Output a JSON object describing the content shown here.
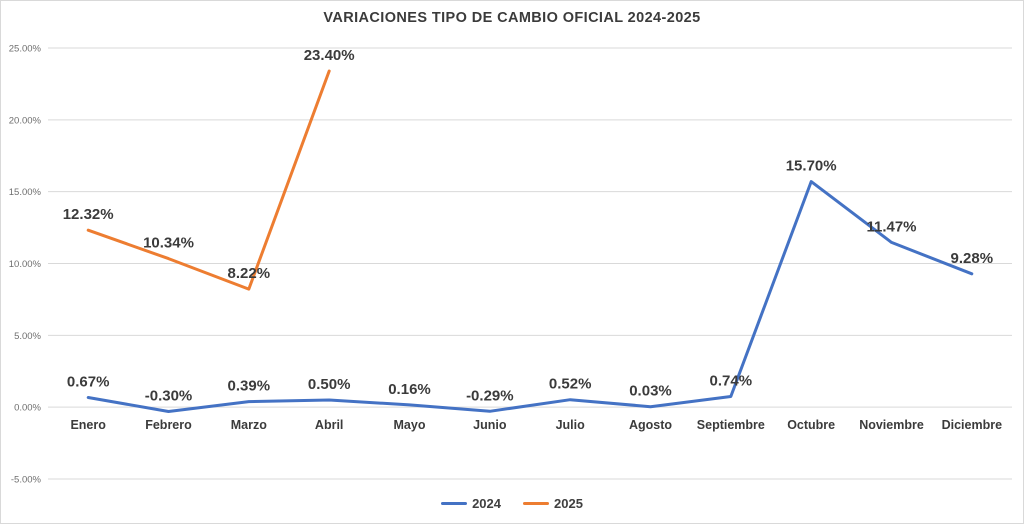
{
  "chart_data": {
    "type": "line",
    "title": "VARIACIONES TIPO DE CAMBIO OFICIAL 2024-2025",
    "categories": [
      "Enero",
      "Febrero",
      "Marzo",
      "Abril",
      "Mayo",
      "Junio",
      "Julio",
      "Agosto",
      "Septiembre",
      "Octubre",
      "Noviembre",
      "Diciembre"
    ],
    "series": [
      {
        "name": "2024",
        "color": "#4472C4",
        "values": [
          0.67,
          -0.3,
          0.39,
          0.5,
          0.16,
          -0.29,
          0.52,
          0.03,
          0.74,
          15.7,
          11.47,
          9.28
        ],
        "labels": [
          "0.67%",
          "-0.30%",
          "0.39%",
          "0.50%",
          "0.16%",
          "-0.29%",
          "0.52%",
          "0.03%",
          "0.74%",
          "15.70%",
          "11.47%",
          "9.28%"
        ]
      },
      {
        "name": "2025",
        "color": "#ED7D31",
        "values": [
          12.32,
          10.34,
          8.22,
          23.4,
          null,
          null,
          null,
          null,
          null,
          null,
          null,
          null
        ],
        "labels": [
          "12.32%",
          "10.34%",
          "8.22%",
          "23.40%",
          null,
          null,
          null,
          null,
          null,
          null,
          null,
          null
        ]
      }
    ],
    "xlabel": "",
    "ylabel": "",
    "ylim": [
      -5,
      25
    ],
    "yticks": [
      {
        "value": 25,
        "label": "25.00%"
      },
      {
        "value": 20,
        "label": "20.00%"
      },
      {
        "value": 15,
        "label": "15.00%"
      },
      {
        "value": 10,
        "label": "10.00%"
      },
      {
        "value": 5,
        "label": "5.00%"
      },
      {
        "value": 0,
        "label": "0.00%"
      },
      {
        "value": -5,
        "label": "-5.00%"
      }
    ],
    "grid": true,
    "legend_position": "bottom"
  }
}
